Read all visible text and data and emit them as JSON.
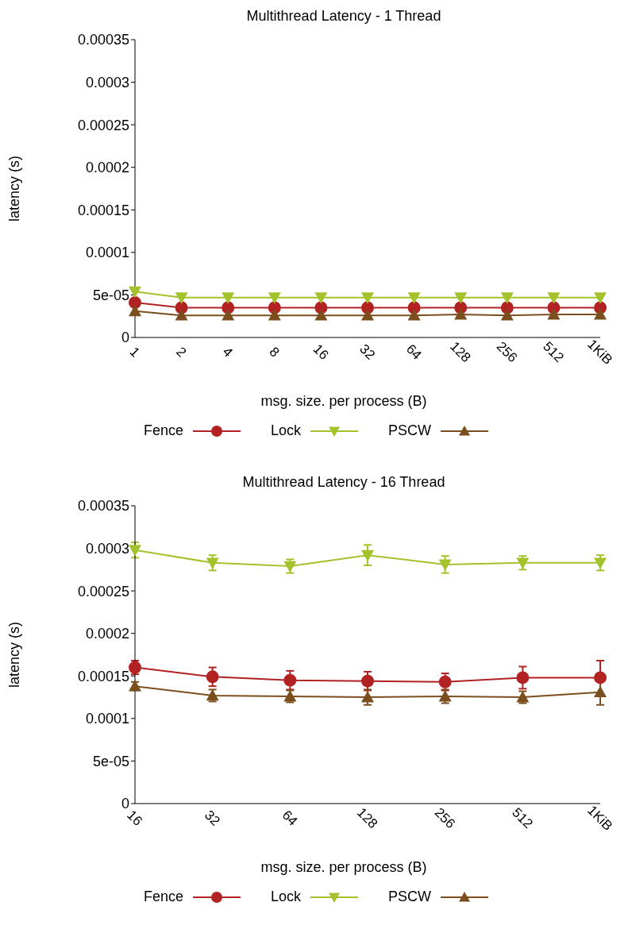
{
  "chart_data": [
    {
      "type": "line",
      "title": "Multithread Latency - 1 Thread",
      "xlabel": "msg. size. per process (B)",
      "ylabel": "latency (s)",
      "categories": [
        "1",
        "2",
        "4",
        "8",
        "16",
        "32",
        "64",
        "128",
        "256",
        "512",
        "1KiB"
      ],
      "series": [
        {
          "name": "Fence",
          "color": "#b22222",
          "marker": "circle",
          "values": [
            4.1e-05,
            3.5e-05,
            3.5e-05,
            3.5e-05,
            3.5e-05,
            3.5e-05,
            3.5e-05,
            3.5e-05,
            3.5e-05,
            3.5e-05,
            3.5e-05
          ]
        },
        {
          "name": "Lock",
          "color": "#a4c22c",
          "marker": "triangle-down",
          "values": [
            5.4e-05,
            4.7e-05,
            4.7e-05,
            4.7e-05,
            4.7e-05,
            4.7e-05,
            4.7e-05,
            4.7e-05,
            4.7e-05,
            4.7e-05,
            4.7e-05
          ]
        },
        {
          "name": "PSCW",
          "color": "#7b4f1d",
          "marker": "triangle",
          "values": [
            3.1e-05,
            2.6e-05,
            2.6e-05,
            2.6e-05,
            2.6e-05,
            2.6e-05,
            2.6e-05,
            2.7e-05,
            2.6e-05,
            2.7e-05,
            2.7e-05
          ]
        }
      ],
      "ylim": [
        0,
        0.00035
      ],
      "yticks": [
        0,
        {
          "value": 5e-05,
          "label": "5e-05"
        },
        0.0001,
        0.00015,
        0.0002,
        0.00025,
        0.0003,
        0.00035
      ],
      "legend": "bottom",
      "grid": false
    },
    {
      "type": "line",
      "title": "Multithread Latency - 16 Thread",
      "xlabel": "msg. size. per process (B)",
      "ylabel": "latency (s)",
      "categories": [
        "16",
        "32",
        "64",
        "128",
        "256",
        "512",
        "1KiB"
      ],
      "series": [
        {
          "name": "Fence",
          "color": "#b22222",
          "marker": "circle",
          "values": [
            0.00016,
            0.000149,
            0.000145,
            0.000144,
            0.000143,
            0.000148,
            0.000148
          ],
          "errors": [
            8e-06,
            1.1e-05,
            1.1e-05,
            1.1e-05,
            1e-05,
            1.3e-05,
            2e-05
          ]
        },
        {
          "name": "Lock",
          "color": "#a4c22c",
          "marker": "triangle-down",
          "values": [
            0.000298,
            0.000283,
            0.000279,
            0.000292,
            0.000281,
            0.000283,
            0.000283
          ],
          "errors": [
            9e-06,
            9e-06,
            8e-06,
            1.2e-05,
            1e-05,
            8e-06,
            9e-06
          ]
        },
        {
          "name": "PSCW",
          "color": "#7b4f1d",
          "marker": "triangle",
          "values": [
            0.000138,
            0.000127,
            0.000126,
            0.000125,
            0.000126,
            0.000125,
            0.000131
          ],
          "errors": [
            5e-06,
            7e-06,
            7e-06,
            9e-06,
            8e-06,
            7e-06,
            1.5e-05
          ]
        }
      ],
      "ylim": [
        0,
        0.00035
      ],
      "yticks": [
        0,
        {
          "value": 5e-05,
          "label": "5e-05"
        },
        0.0001,
        0.00015,
        0.0002,
        0.00025,
        0.0003,
        0.00035
      ],
      "legend": "bottom",
      "grid": false
    }
  ]
}
